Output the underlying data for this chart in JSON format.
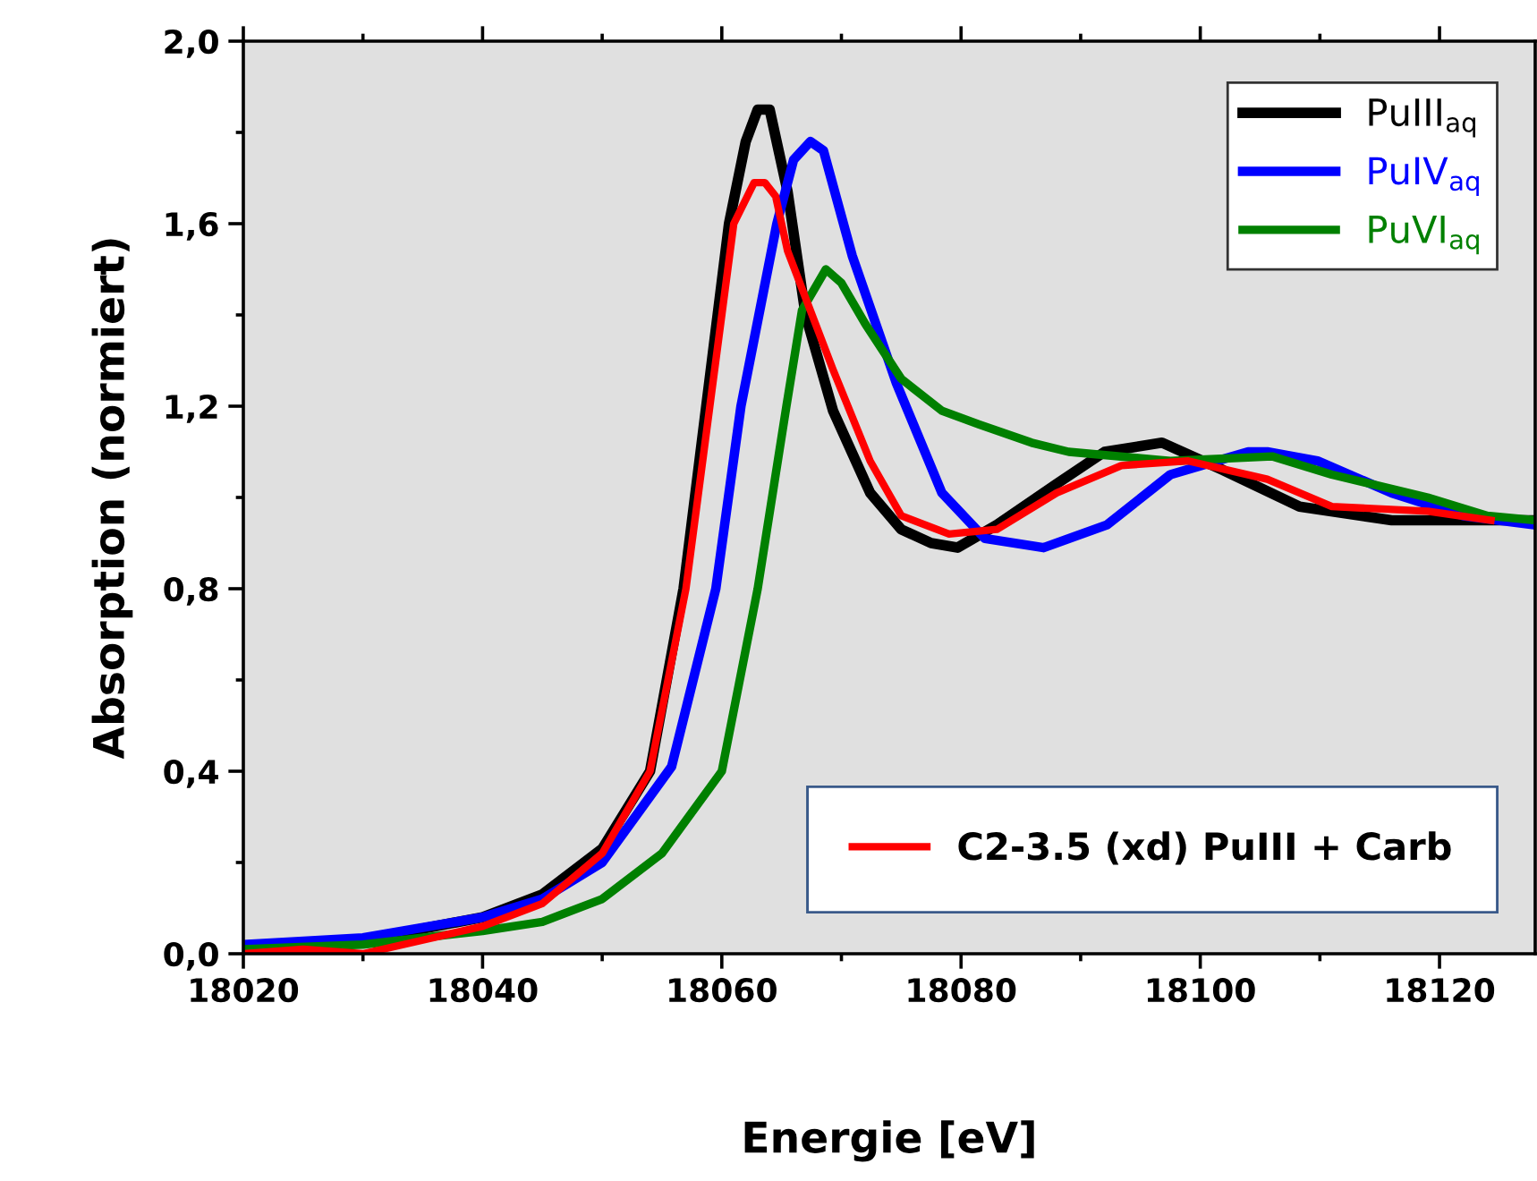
{
  "chart_data": {
    "type": "line",
    "xlabel": "Energie [eV]",
    "ylabel": "Absorption (normiert)",
    "xlim": [
      18020,
      18128
    ],
    "ylim": [
      0,
      2.0
    ],
    "xticks": [
      18020,
      18040,
      18060,
      18080,
      18100,
      18120
    ],
    "yticks": [
      {
        "value": 0,
        "label": "0,0"
      },
      {
        "value": 0.4,
        "label": "0,4"
      },
      {
        "value": 0.8,
        "label": "0,8"
      },
      {
        "value": 1.2,
        "label": "1,2"
      },
      {
        "value": 1.6,
        "label": "1,6"
      },
      {
        "value": 2.0,
        "label": "2,0"
      }
    ],
    "grid": false,
    "legend": "top right",
    "marker": "none",
    "line_style": "solid",
    "series": [
      {
        "name": "PuIII$_{aq}$",
        "color": "#000000",
        "x": [
          18020,
          18030,
          18040,
          18045,
          18050,
          18054,
          18056.8,
          18058.7,
          18060.6,
          18062,
          18063,
          18064,
          18065.5,
          18067,
          18069.3,
          18072.4,
          18075,
          18077.5,
          18079.7,
          18083,
          18088,
          18092,
          18096.8,
          18101.9,
          18108.3,
          18116,
          18128
        ],
        "values": [
          0.0,
          0.03,
          0.08,
          0.13,
          0.23,
          0.4,
          0.8,
          1.2,
          1.6,
          1.78,
          1.85,
          1.85,
          1.67,
          1.4,
          1.19,
          1.01,
          0.93,
          0.9,
          0.89,
          0.94,
          1.03,
          1.1,
          1.12,
          1.06,
          0.98,
          0.95,
          0.95
        ]
      },
      {
        "name": "PuIV$_{aq}$",
        "color": "#0000ff",
        "x": [
          18020,
          18030,
          18040,
          18045,
          18050,
          18055.8,
          18059.5,
          18061.6,
          18064.6,
          18066,
          18067.4,
          18068.5,
          18070.9,
          18074.6,
          18078.4,
          18082,
          18086.9,
          18092.2,
          18097.5,
          18104,
          18105.6,
          18109.8,
          18116,
          18122,
          18128
        ],
        "values": [
          0.02,
          0.035,
          0.08,
          0.12,
          0.2,
          0.41,
          0.8,
          1.2,
          1.6,
          1.74,
          1.78,
          1.76,
          1.53,
          1.25,
          1.01,
          0.91,
          0.89,
          0.94,
          1.05,
          1.1,
          1.1,
          1.08,
          1.01,
          0.96,
          0.94
        ]
      },
      {
        "name": "PuVI$_{aq}$",
        "color": "#008000",
        "x": [
          18020,
          18030,
          18040,
          18045,
          18050,
          18055,
          18060,
          18063,
          18065.4,
          18066.7,
          18068.7,
          18070,
          18072,
          18075,
          18078.4,
          18081.5,
          18085.9,
          18089,
          18097.5,
          18106,
          18111,
          18119,
          18124,
          18128
        ],
        "values": [
          0.01,
          0.02,
          0.05,
          0.07,
          0.12,
          0.22,
          0.4,
          0.8,
          1.2,
          1.41,
          1.5,
          1.47,
          1.38,
          1.26,
          1.19,
          1.16,
          1.12,
          1.1,
          1.08,
          1.09,
          1.05,
          1.0,
          0.96,
          0.95
        ]
      },
      {
        "name": "C2-3.5 (xd) PuIII + Carb",
        "color": "#ff0000",
        "x": [
          18020,
          18025,
          18030,
          18035,
          18040,
          18045,
          18050,
          18054,
          18057,
          18059,
          18061,
          18062.7,
          18063.6,
          18064.5,
          18065.5,
          18069.3,
          18072.4,
          18075,
          18079,
          18083,
          18088,
          18093.4,
          18099,
          18105.6,
          18111,
          18119,
          18124.3
        ],
        "values": [
          0.0,
          0.01,
          0.0,
          0.03,
          0.06,
          0.11,
          0.22,
          0.4,
          0.8,
          1.2,
          1.6,
          1.69,
          1.69,
          1.66,
          1.54,
          1.28,
          1.08,
          0.96,
          0.92,
          0.93,
          1.01,
          1.07,
          1.08,
          1.04,
          0.98,
          0.97,
          0.95
        ]
      }
    ]
  }
}
